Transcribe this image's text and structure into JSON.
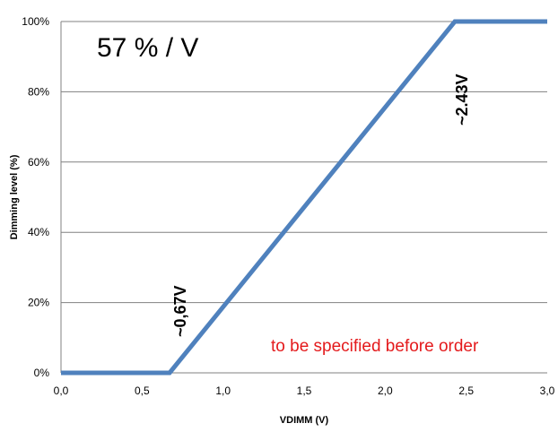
{
  "chart_data": {
    "type": "line",
    "xlabel": "VDIMM (V)",
    "ylabel": "Dimming level (%)",
    "xlim": [
      0,
      3
    ],
    "ylim": [
      0,
      100
    ],
    "x_ticks": [
      "0,0",
      "0,5",
      "1,0",
      "1,5",
      "2,0",
      "2,5",
      "3,0"
    ],
    "x_tick_values": [
      0,
      0.5,
      1.0,
      1.5,
      2.0,
      2.5,
      3.0
    ],
    "y_ticks": [
      "0%",
      "20%",
      "40%",
      "60%",
      "80%",
      "100%"
    ],
    "y_tick_values": [
      0,
      20,
      40,
      60,
      80,
      100
    ],
    "grid": "horizontal",
    "legend": "none",
    "series": [
      {
        "color": "#4f81bd",
        "x": [
          0,
          0.67,
          2.43,
          3.0
        ],
        "y": [
          0,
          0,
          100,
          100
        ]
      }
    ],
    "annotations": {
      "slope": "57 % / V",
      "low_point": "~0,67V",
      "high_point": "~2.43V",
      "note": "to be specified before order"
    },
    "colors": {
      "line": "#4f81bd",
      "grid": "#808080",
      "note": "#e41a1c"
    }
  }
}
